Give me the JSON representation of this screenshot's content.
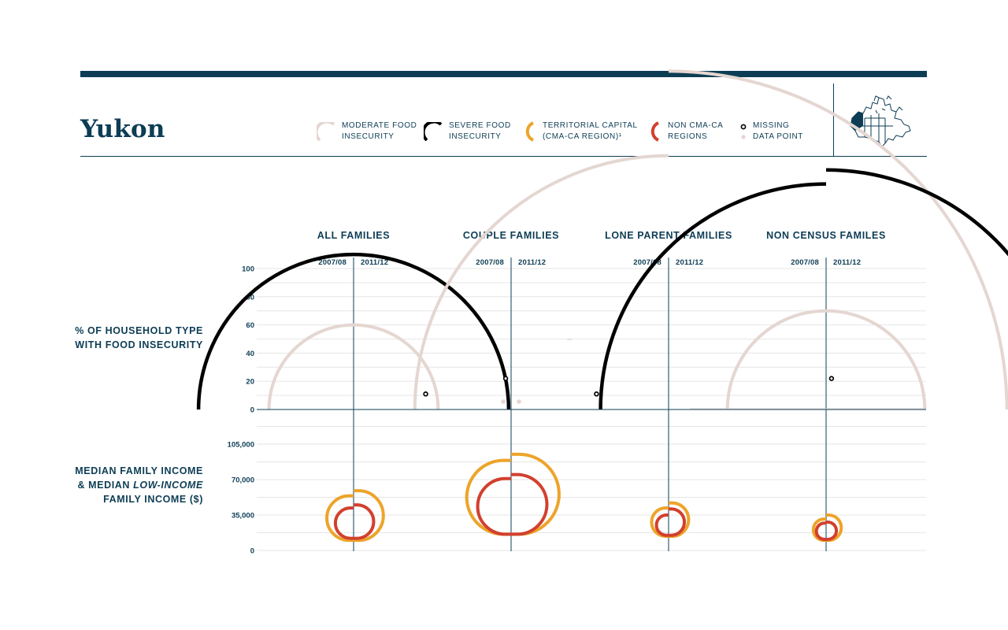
{
  "title": "Yukon",
  "legend": [
    {
      "key": "moderate",
      "line1": "MODERATE FOOD",
      "line2": "INSECURITY",
      "color": "#e4d6d1"
    },
    {
      "key": "severe",
      "line1": "SEVERE FOOD",
      "line2": "INSECURITY",
      "color": "#000000"
    },
    {
      "key": "capital",
      "line1": "TERRITORIAL CAPITAL",
      "line2": "(CMA-CA REGION)¹",
      "color": "#eda42a"
    },
    {
      "key": "noncma",
      "line1": "NON CMA-CA",
      "line2": "REGIONS",
      "color": "#d2402e"
    },
    {
      "key": "missing",
      "line1": "MISSING",
      "line2": "DATA POINT",
      "color": "#000000"
    }
  ],
  "row_labels": {
    "food": {
      "line1": "% OF HOUSEHOLD TYPE",
      "line2": "WITH FOOD INSECURITY"
    },
    "income": {
      "line1": "MEDIAN FAMILY INCOME",
      "line2_a": "& MEDIAN ",
      "line2_b": "LOW-INCOME",
      "line3": "FAMILY INCOME ($)"
    }
  },
  "chart_data": {
    "type": "semicircle-bubble",
    "groups": [
      "ALL FAMILIES",
      "COUPLE FAMILIES",
      "LONE PARENT FAMILIES",
      "NON CENSUS FAMILES"
    ],
    "periods": [
      "2007/08",
      "2011/12"
    ],
    "food_insecurity": {
      "yticks": [
        0,
        20,
        40,
        60,
        80,
        100
      ],
      "ylim": [
        0,
        100
      ],
      "values": [
        {
          "severe": [
            11,
            11
          ],
          "moderate": [
            6,
            6
          ],
          "missing": {
            "severe": [
              false,
              false
            ],
            "moderate": [
              false,
              false
            ]
          }
        },
        {
          "severe": [
            11,
            11
          ],
          "moderate": [
            5,
            5
          ],
          "missing": {
            "severe": [
              true,
              true
            ],
            "moderate": [
              true,
              true
            ]
          }
        },
        {
          "severe": [
            22,
            22
          ],
          "moderate": [
            18,
            24
          ],
          "missing": {
            "severe": [
              true,
              true
            ],
            "moderate": [
              false,
              false
            ]
          }
        },
        {
          "severe": [
            16,
            17
          ],
          "moderate": [
            7,
            7
          ],
          "missing": {
            "severe": [
              false,
              false
            ],
            "moderate": [
              false,
              false
            ]
          }
        }
      ]
    },
    "income": {
      "yticks": [
        0,
        35000,
        70000,
        105000
      ],
      "ytick_labels": [
        "0",
        "35,000",
        "70,000",
        "105,000"
      ],
      "ylim": [
        0,
        105000
      ],
      "values": [
        {
          "capital_median": [
            54000,
            59000
          ],
          "capital_low": [
            10000,
            10000
          ],
          "noncma_median": [
            42000,
            45000
          ],
          "noncma_low": [
            12000,
            12000
          ]
        },
        {
          "capital_median": [
            89000,
            95000
          ],
          "capital_low": [
            16000,
            16000
          ],
          "noncma_median": [
            71000,
            75000
          ],
          "noncma_low": [
            16000,
            16000
          ]
        },
        {
          "capital_median": [
            42000,
            47000
          ],
          "capital_low": [
            14000,
            14000
          ],
          "noncma_median": [
            35000,
            41000
          ],
          "noncma_low": [
            15000,
            15000
          ]
        },
        {
          "capital_median": [
            31000,
            35000
          ],
          "capital_low": [
            10000,
            10000
          ],
          "noncma_median": [
            27000,
            28000
          ],
          "noncma_low": [
            11000,
            11000
          ]
        }
      ]
    }
  }
}
